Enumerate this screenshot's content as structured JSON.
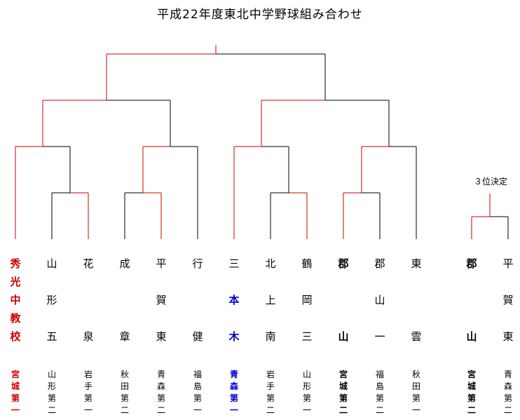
{
  "title": "平成22年度東北中学野球組み合わせ",
  "third_place_label": "３位決定",
  "colors": {
    "winner": "#cc0000",
    "line": "#000000",
    "highlight": "#0000cc",
    "text": "#000000"
  },
  "teams": [
    {
      "name": [
        "秀",
        "光",
        "中",
        "教",
        "校"
      ],
      "pref": [
        "宮",
        "城",
        "第",
        "一"
      ],
      "color": "winner",
      "bold": true
    },
    {
      "name": [
        "山",
        "",
        "形",
        "",
        "五"
      ],
      "pref": [
        "山",
        "形",
        "第",
        "二"
      ]
    },
    {
      "name": [
        "花",
        "",
        "",
        "",
        "泉"
      ],
      "pref": [
        "岩",
        "手",
        "第",
        "一"
      ]
    },
    {
      "name": [
        "成",
        "",
        "",
        "",
        "章"
      ],
      "pref": [
        "秋",
        "田",
        "第",
        "二"
      ]
    },
    {
      "name": [
        "平",
        "",
        "賀",
        "",
        "東"
      ],
      "pref": [
        "青",
        "森",
        "第",
        "二"
      ]
    },
    {
      "name": [
        "行",
        "",
        "",
        "",
        "健"
      ],
      "pref": [
        "福",
        "島",
        "第",
        "一"
      ]
    },
    {
      "name": [
        "三",
        "",
        "本",
        "",
        "木"
      ],
      "pref": [
        "青",
        "森",
        "第",
        "一"
      ],
      "color": "highlight",
      "bold": true,
      "bold_rows": [
        2,
        4
      ]
    },
    {
      "name": [
        "北",
        "",
        "上",
        "",
        "南"
      ],
      "pref": [
        "岩",
        "手",
        "第",
        "二"
      ]
    },
    {
      "name": [
        "鶴",
        "",
        "岡",
        "",
        "三"
      ],
      "pref": [
        "山",
        "形",
        "第",
        "一"
      ]
    },
    {
      "name": [
        "郡",
        "",
        "",
        "",
        "山"
      ],
      "pref": [
        "宮",
        "城",
        "第",
        "二"
      ],
      "bold": true
    },
    {
      "name": [
        "郡",
        "",
        "山",
        "",
        "一"
      ],
      "pref": [
        "福",
        "島",
        "第",
        "二"
      ]
    },
    {
      "name": [
        "東",
        "",
        "",
        "",
        "雲"
      ],
      "pref": [
        "秋",
        "田",
        "第",
        "一"
      ]
    },
    {
      "name": [
        "郡",
        "",
        "",
        "",
        "山"
      ],
      "pref": [
        "宮",
        "城",
        "第",
        "二"
      ],
      "bold": true
    },
    {
      "name": [
        "平",
        "",
        "賀",
        "",
        "東"
      ],
      "pref": [
        "青",
        "森",
        "第",
        "二"
      ]
    }
  ]
}
